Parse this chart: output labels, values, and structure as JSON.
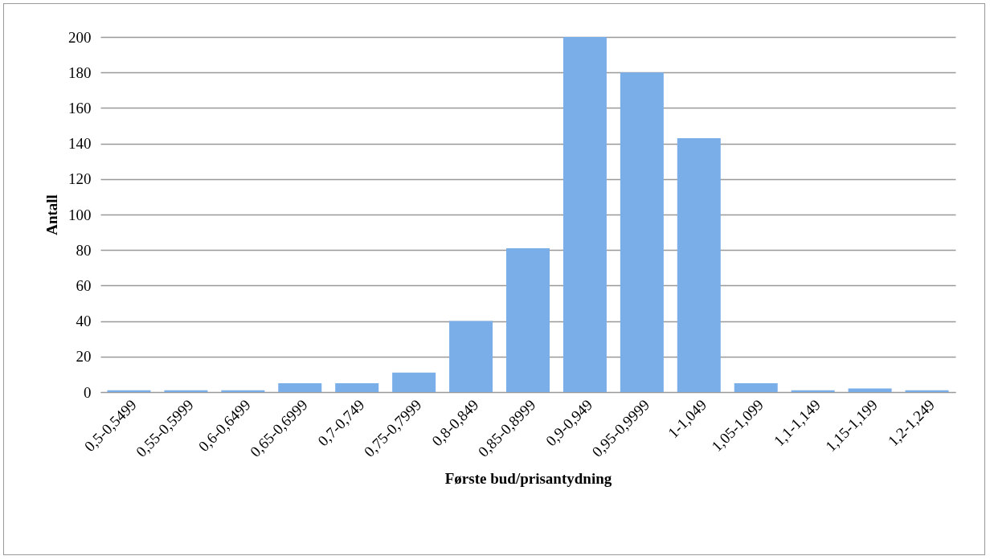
{
  "chart_data": {
    "type": "bar",
    "xlabel": "Første bud/prisantydning",
    "ylabel": "Antall",
    "categories": [
      "0,5-0,5499",
      "0,55-0,5999",
      "0,6-0,6499",
      "0,65-0,6999",
      "0,7-0,749",
      "0,75-0,7999",
      "0,8-0,849",
      "0,85-0,8999",
      "0,9-0,949",
      "0,95-0,9999",
      "1-1,049",
      "1,05-1,099",
      "1,1-1,149",
      "1,15-1,199",
      "1,2-1,249"
    ],
    "values": [
      1,
      1,
      1,
      5,
      5,
      11,
      40,
      81,
      200,
      180,
      143,
      5,
      1,
      2,
      1
    ],
    "color": "#7aaee8",
    "ylim": [
      0,
      200
    ],
    "yticks": [
      0,
      20,
      40,
      60,
      80,
      100,
      120,
      140,
      160,
      180,
      200
    ],
    "grid": "y"
  }
}
